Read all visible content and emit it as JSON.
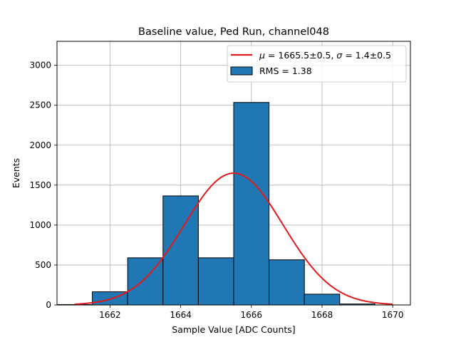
{
  "chart_data": {
    "type": "bar",
    "title": "Baseline value, Ped Run, channel048",
    "xlabel": "Sample Value [ADC Counts]",
    "ylabel": "Events",
    "xlim": [
      1660.5,
      1670.5
    ],
    "ylim": [
      0,
      3300
    ],
    "xticks": [
      1662,
      1664,
      1666,
      1668,
      1670
    ],
    "yticks": [
      0,
      500,
      1000,
      1500,
      2000,
      2500,
      3000
    ],
    "grid": true,
    "legend_position": "top-right",
    "histogram": {
      "name": "RMS = 1.38",
      "bin_edges": [
        1660.5,
        1661.5,
        1662.5,
        1663.5,
        1664.5,
        1665.5,
        1666.5,
        1667.5,
        1668.5,
        1669.5
      ],
      "counts": [
        5,
        165,
        590,
        1365,
        590,
        2535,
        565,
        135,
        12
      ],
      "color": "#1f77b4",
      "edgecolor": "#000000"
    },
    "fit": {
      "name_mu_value": "1665.5±0.5",
      "name_sigma_value": "1.4±0.5",
      "type": "gaussian",
      "amplitude": 1650,
      "mu": 1665.5,
      "sigma": 1.4,
      "x_range": [
        1661,
        1670
      ],
      "color": "#e31a1c"
    }
  }
}
